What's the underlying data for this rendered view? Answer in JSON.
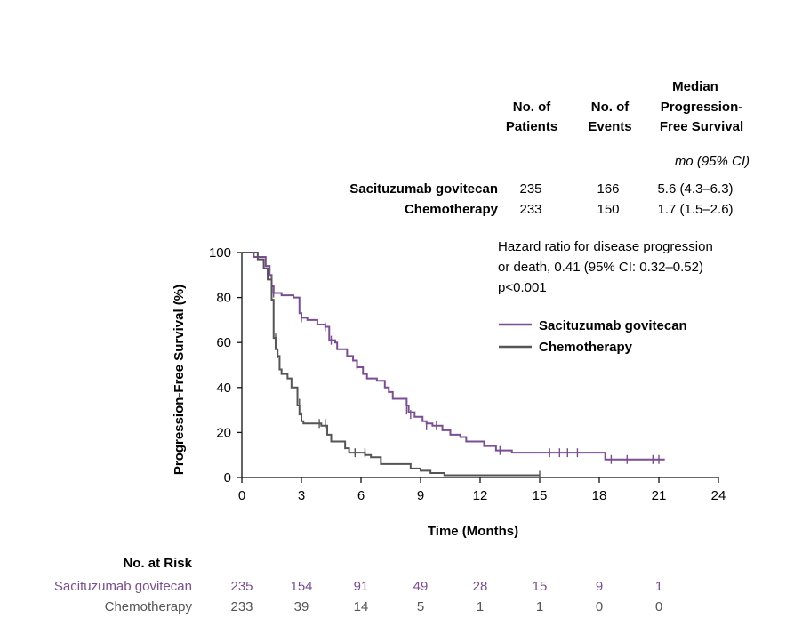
{
  "chart_data": {
    "type": "line",
    "subtype": "kaplan-meier step",
    "xlabel": "Time (Months)",
    "ylabel": "Progression-Free Survival (%)",
    "xlim": [
      0,
      24
    ],
    "ylim": [
      0,
      100
    ],
    "xticks": [
      0,
      3,
      6,
      9,
      12,
      15,
      18,
      21,
      24
    ],
    "yticks": [
      0,
      20,
      40,
      60,
      80,
      100
    ],
    "grid": false,
    "legend_position": "right, below hazard-ratio note",
    "colors": {
      "sacituzumab": "#7b4d95",
      "chemotherapy": "#555555"
    },
    "summary_table": {
      "headers": {
        "patients": [
          "No. of",
          "Patients"
        ],
        "events": [
          "No. of",
          "Events"
        ],
        "median": [
          "Median",
          "Progression-",
          "Free Survival"
        ],
        "median_unit": "mo (95% CI)"
      },
      "rows": [
        {
          "name": "Sacituzumab govitecan",
          "patients": "235",
          "events": "166",
          "median": "5.6 (4.3–6.3)"
        },
        {
          "name": "Chemotherapy",
          "patients": "233",
          "events": "150",
          "median": "1.7 (1.5–2.6)"
        }
      ]
    },
    "annotation": [
      "Hazard ratio for disease progression",
      "or death, 0.41 (95% CI: 0.32–0.52)",
      "p<0.001"
    ],
    "series": [
      {
        "name": "Sacituzumab govitecan",
        "color": "#7b4d95",
        "steps": [
          [
            0,
            100
          ],
          [
            0.6,
            98
          ],
          [
            1.2,
            94
          ],
          [
            1.4,
            90
          ],
          [
            1.5,
            85
          ],
          [
            1.6,
            82
          ],
          [
            2.0,
            81
          ],
          [
            2.6,
            80
          ],
          [
            2.9,
            73
          ],
          [
            3.0,
            71
          ],
          [
            3.3,
            70
          ],
          [
            3.8,
            68
          ],
          [
            4.2,
            67
          ],
          [
            4.4,
            61
          ],
          [
            4.7,
            60
          ],
          [
            4.8,
            57
          ],
          [
            5.3,
            54
          ],
          [
            5.6,
            52
          ],
          [
            5.8,
            49
          ],
          [
            6.1,
            46
          ],
          [
            6.3,
            44
          ],
          [
            6.8,
            43
          ],
          [
            7.2,
            40
          ],
          [
            7.4,
            38
          ],
          [
            7.6,
            35
          ],
          [
            8.3,
            32
          ],
          [
            8.4,
            29
          ],
          [
            8.7,
            27
          ],
          [
            9.1,
            25
          ],
          [
            9.3,
            24
          ],
          [
            9.6,
            23
          ],
          [
            10.1,
            21
          ],
          [
            10.5,
            19
          ],
          [
            11.0,
            18
          ],
          [
            11.3,
            16
          ],
          [
            12.2,
            14
          ],
          [
            12.8,
            12
          ],
          [
            13.6,
            11
          ],
          [
            14.5,
            11
          ],
          [
            17.0,
            11
          ],
          [
            18.2,
            11
          ],
          [
            18.3,
            8
          ],
          [
            20.0,
            8
          ],
          [
            21.3,
            8
          ]
        ],
        "censor_marks": [
          [
            1.5,
            88
          ],
          [
            1.6,
            82
          ],
          [
            3.0,
            71
          ],
          [
            4.2,
            67
          ],
          [
            4.5,
            61
          ],
          [
            5.8,
            50
          ],
          [
            8.3,
            30
          ],
          [
            8.5,
            28
          ],
          [
            9.3,
            23
          ],
          [
            9.8,
            23
          ],
          [
            13.0,
            12
          ],
          [
            15.5,
            11
          ],
          [
            16.0,
            11
          ],
          [
            16.4,
            11
          ],
          [
            16.9,
            11
          ],
          [
            18.6,
            8
          ],
          [
            19.4,
            8
          ],
          [
            20.7,
            8
          ],
          [
            21.0,
            8
          ]
        ],
        "end_month": 21.3
      },
      {
        "name": "Chemotherapy",
        "color": "#555555",
        "steps": [
          [
            0,
            100
          ],
          [
            0.8,
            97
          ],
          [
            1.1,
            93
          ],
          [
            1.3,
            88
          ],
          [
            1.5,
            79
          ],
          [
            1.6,
            62
          ],
          [
            1.7,
            57
          ],
          [
            1.8,
            54
          ],
          [
            1.9,
            48
          ],
          [
            2.0,
            46
          ],
          [
            2.3,
            44
          ],
          [
            2.5,
            40
          ],
          [
            2.8,
            32
          ],
          [
            2.9,
            28
          ],
          [
            3.0,
            25
          ],
          [
            3.1,
            24
          ],
          [
            4.0,
            23
          ],
          [
            4.3,
            19
          ],
          [
            4.5,
            16
          ],
          [
            5.2,
            13
          ],
          [
            5.4,
            11
          ],
          [
            6.2,
            10
          ],
          [
            6.5,
            9
          ],
          [
            7.0,
            6
          ],
          [
            7.5,
            6
          ],
          [
            8.5,
            4
          ],
          [
            9.0,
            3
          ],
          [
            9.5,
            2
          ],
          [
            10.2,
            1
          ],
          [
            11.5,
            1
          ],
          [
            14.5,
            1
          ],
          [
            15.0,
            1
          ]
        ],
        "censor_marks": [
          [
            1.6,
            66
          ],
          [
            1.7,
            62
          ],
          [
            1.8,
            55
          ],
          [
            2.9,
            33
          ],
          [
            3.0,
            27
          ],
          [
            3.9,
            24
          ],
          [
            4.2,
            24
          ],
          [
            5.7,
            11
          ],
          [
            6.2,
            11
          ],
          [
            15.0,
            1
          ]
        ],
        "end_month": 15.0
      }
    ],
    "at_risk": {
      "title": "No. at Risk",
      "months": [
        0,
        3,
        6,
        9,
        12,
        15,
        18,
        21
      ],
      "rows": [
        {
          "name": "Sacituzumab govitecan",
          "color": "#7b4d95",
          "values": [
            "235",
            "154",
            "91",
            "49",
            "28",
            "15",
            "9",
            "1"
          ]
        },
        {
          "name": "Chemotherapy",
          "color": "#555555",
          "values": [
            "233",
            "39",
            "14",
            "5",
            "1",
            "1",
            "0",
            "0"
          ]
        }
      ]
    }
  }
}
